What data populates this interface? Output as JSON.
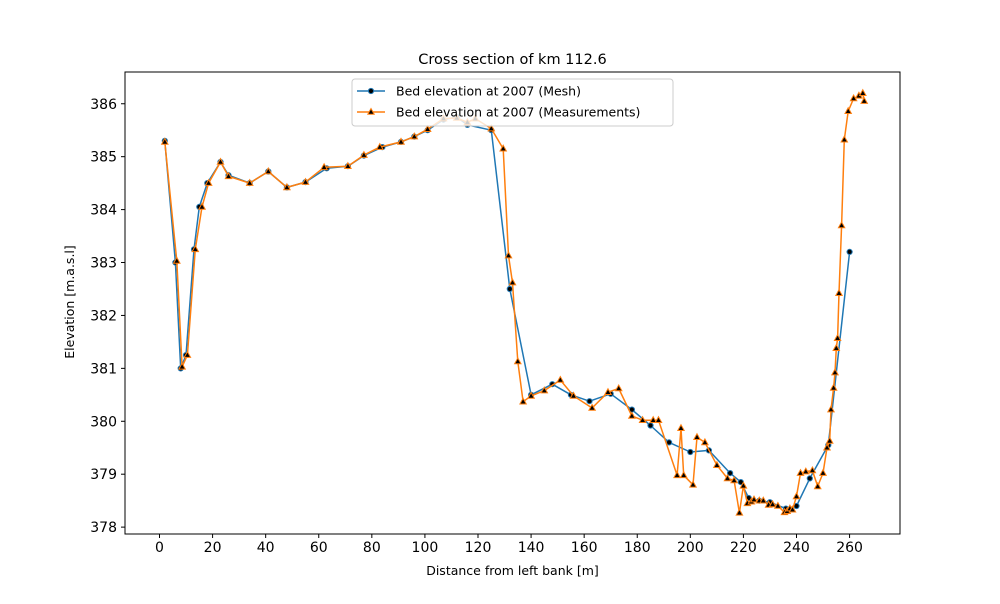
{
  "chart_data": {
    "type": "line",
    "title": "Cross section of km 112.6",
    "xlabel": "Distance from left bank [m]",
    "ylabel": "Elevation [m.a.s.l]",
    "xlim": [
      -13,
      279
    ],
    "ylim": [
      377.87,
      386.6
    ],
    "xticks": [
      0,
      20,
      40,
      60,
      80,
      100,
      120,
      140,
      160,
      180,
      200,
      220,
      240,
      260
    ],
    "yticks": [
      378,
      379,
      380,
      381,
      382,
      383,
      384,
      385,
      386
    ],
    "grid": false,
    "legend_position": "top-center",
    "series": [
      {
        "name": "Bed elevation at 2007 (Mesh)",
        "color": "#1f77b4",
        "marker": "circle",
        "x": [
          2,
          6,
          8,
          10,
          13,
          15,
          18,
          23,
          26,
          34,
          41,
          48,
          55,
          63,
          71,
          77,
          84,
          91,
          96,
          101,
          107,
          112,
          116,
          125,
          132,
          140,
          148,
          155,
          162,
          170,
          178,
          185,
          192,
          200,
          207,
          215,
          219,
          222,
          226,
          230,
          236,
          240,
          245,
          252,
          260
        ],
        "y": [
          385.3,
          383.0,
          381.0,
          381.25,
          383.25,
          384.05,
          384.5,
          384.9,
          384.65,
          384.5,
          384.72,
          384.42,
          384.52,
          384.78,
          384.82,
          385.02,
          385.18,
          385.28,
          385.38,
          385.5,
          385.7,
          385.75,
          385.6,
          385.5,
          382.5,
          380.5,
          380.7,
          380.5,
          380.38,
          380.52,
          380.22,
          379.92,
          379.6,
          379.42,
          379.45,
          379.02,
          378.85,
          378.55,
          378.5,
          378.47,
          378.35,
          378.4,
          378.92,
          379.55,
          383.2
        ]
      },
      {
        "name": "Bed elevation at 2007 (Measurements)",
        "color": "#ff7f0e",
        "marker": "triangle",
        "x": [
          2,
          6.5,
          8.5,
          10.5,
          13.5,
          16,
          18.5,
          23,
          26,
          34,
          41,
          48,
          55,
          62,
          71,
          77,
          83,
          91,
          96,
          101,
          107,
          112,
          116,
          119,
          125,
          129.5,
          131.5,
          133,
          135,
          137,
          140,
          145,
          151,
          156,
          163,
          169,
          173,
          178,
          182,
          186,
          188,
          195,
          196.5,
          197.5,
          201,
          202.5,
          205.5,
          210,
          214,
          216.5,
          218.5,
          220,
          221.5,
          223,
          224,
          226,
          227.5,
          229.5,
          231,
          233,
          235.5,
          236.5,
          237.5,
          238.5,
          240,
          241.5,
          243.5,
          246,
          248,
          250,
          251.5,
          252.5,
          253,
          254,
          254.5,
          255,
          255.5,
          256,
          257,
          258,
          259.5,
          261.5,
          263.5,
          265,
          265.5
        ],
        "y": [
          385.28,
          383.03,
          381.03,
          381.25,
          383.25,
          384.05,
          384.5,
          384.9,
          384.63,
          384.5,
          384.72,
          384.42,
          384.52,
          384.8,
          384.82,
          385.03,
          385.18,
          385.28,
          385.38,
          385.52,
          385.72,
          385.73,
          385.65,
          385.72,
          385.53,
          385.15,
          383.13,
          382.62,
          381.13,
          380.37,
          380.48,
          380.58,
          380.78,
          380.48,
          380.25,
          380.55,
          380.62,
          380.1,
          380.02,
          380.02,
          380.02,
          378.98,
          379.87,
          378.98,
          378.8,
          379.7,
          379.6,
          379.17,
          378.92,
          378.88,
          378.27,
          378.78,
          378.45,
          378.48,
          378.52,
          378.5,
          378.5,
          378.42,
          378.43,
          378.4,
          378.28,
          378.3,
          378.35,
          378.33,
          378.58,
          379.02,
          379.05,
          379.07,
          378.77,
          379.02,
          379.5,
          379.63,
          380.22,
          380.63,
          380.92,
          381.38,
          381.57,
          382.42,
          383.7,
          385.32,
          385.86,
          386.1,
          386.15,
          386.2,
          386.05
        ]
      }
    ]
  }
}
